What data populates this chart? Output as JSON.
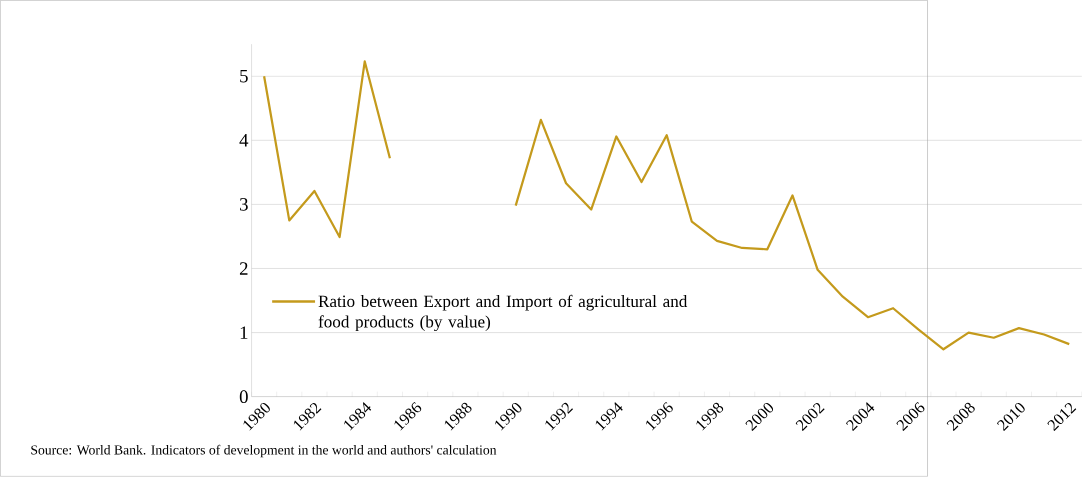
{
  "chart_data": {
    "type": "line",
    "categories": [
      "1980",
      null,
      "1982",
      null,
      "1984",
      null,
      "1986",
      null,
      "1988",
      null,
      "1990",
      null,
      "1992",
      null,
      "1994",
      null,
      "1996",
      null,
      "1998",
      null,
      "2000",
      null,
      "2002",
      null,
      "2004",
      null,
      "2006",
      null,
      "2008",
      null,
      "2010",
      null,
      "2012"
    ],
    "series": [
      {
        "name": "Ratio between Export and Import of agricultural and food products (by value)",
        "color": "#c49a1c",
        "values": [
          5.0,
          2.75,
          3.21,
          2.49,
          5.23,
          3.72,
          null,
          null,
          null,
          null,
          2.98,
          4.32,
          3.33,
          2.92,
          4.06,
          3.35,
          4.08,
          2.73,
          2.43,
          2.32,
          2.3,
          3.14,
          1.98,
          1.56,
          1.24,
          1.38,
          1.05,
          0.74,
          1.0,
          0.92,
          1.07,
          0.97,
          0.82
        ]
      }
    ],
    "ylim": [
      0,
      5.5
    ],
    "yticks": [
      0,
      1,
      2,
      3,
      4,
      5
    ],
    "grid": "y",
    "legend": "left",
    "marker": "none",
    "line_style": "solid",
    "annotations": [
      "Source: World Bank. Indicators of development in the world and authors' calculation"
    ]
  }
}
